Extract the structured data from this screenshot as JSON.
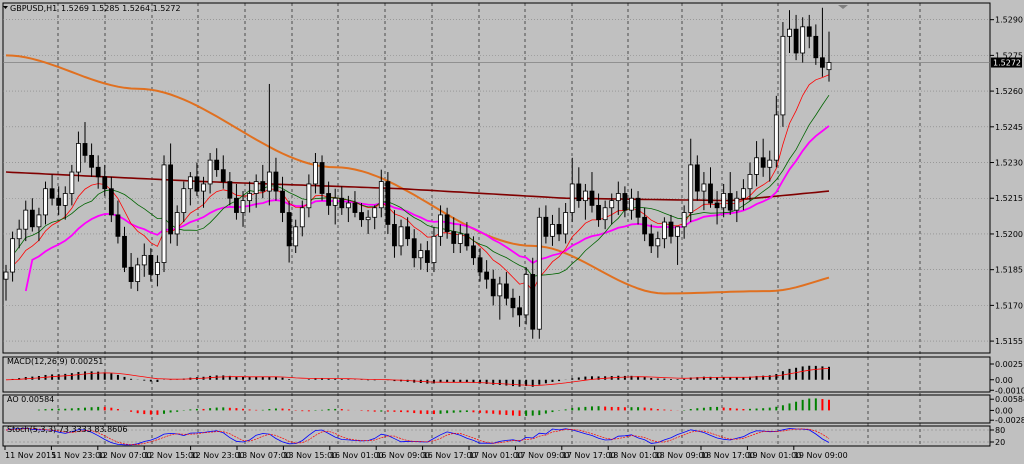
{
  "header": {
    "symbol_title": "GBPUSD,H1",
    "ohlc": "1.5269 1.5285 1.5264 1.5272"
  },
  "price_axis": {
    "ticks": [
      "1.5290",
      "1.5275",
      "1.5260",
      "1.5245",
      "1.5230",
      "1.5215",
      "1.5200",
      "1.5185",
      "1.5170",
      "1.5155"
    ],
    "current_price": "1.5272"
  },
  "time_axis": {
    "ticks": [
      "11 Nov 2015",
      "11 Nov 23:00",
      "12 Nov 07:00",
      "12 Nov 15:00",
      "12 Nov 23:00",
      "13 Nov 07:00",
      "13 Nov 15:00",
      "16 Nov 01:00",
      "16 Nov 09:00",
      "16 Nov 17:00",
      "17 Nov 01:00",
      "17 Nov 09:00",
      "17 Nov 17:00",
      "18 Nov 01:00",
      "18 Nov 09:00",
      "18 Nov 17:00",
      "19 Nov 01:00",
      "19 Nov 09:00"
    ]
  },
  "panels": {
    "macd": {
      "label": "MACD(12,26,9) 0.00251",
      "ticks": [
        "0.00251",
        "0.00",
        "-0.00106"
      ]
    },
    "ao": {
      "label": "AO 0.00584",
      "ticks": [
        "0.00584",
        "0.00",
        "-0.00287"
      ]
    },
    "stoch": {
      "label": "Stoch(5,3,3) 73.3333 83.8606",
      "ticks": [
        "80",
        "20"
      ]
    }
  },
  "colors": {
    "background": "#c0c0c0",
    "bull": "#ffffff",
    "bear": "#000000",
    "sma_long": "#e07020",
    "sma_mid": "#800000",
    "ema_magenta": "#ff00ff",
    "fast_red": "#ff0000",
    "fast_green": "#006400",
    "ao_up": "#008000",
    "ao_down": "#ff0000",
    "stoch_main": "#0000ff",
    "stoch_signal": "#ff0000"
  },
  "chart_data": {
    "type": "candlestick",
    "symbol": "GBPUSD",
    "timeframe": "H1",
    "ylim": [
      1.515,
      1.5297
    ],
    "candles_ohlc": [
      [
        1.5181,
        1.5187,
        1.5172,
        1.5184
      ],
      [
        1.5184,
        1.5201,
        1.518,
        1.5198
      ],
      [
        1.5198,
        1.5206,
        1.5194,
        1.5202
      ],
      [
        1.5202,
        1.5214,
        1.5197,
        1.521
      ],
      [
        1.521,
        1.5215,
        1.5201,
        1.5203
      ],
      [
        1.5203,
        1.5211,
        1.5197,
        1.5208
      ],
      [
        1.5208,
        1.5222,
        1.5204,
        1.5219
      ],
      [
        1.5219,
        1.5225,
        1.5212,
        1.5215
      ],
      [
        1.5215,
        1.522,
        1.5208,
        1.5212
      ],
      [
        1.5212,
        1.522,
        1.5206,
        1.5217
      ],
      [
        1.5217,
        1.5229,
        1.5212,
        1.5226
      ],
      [
        1.5226,
        1.5243,
        1.5222,
        1.5238
      ],
      [
        1.5238,
        1.5247,
        1.523,
        1.5233
      ],
      [
        1.5233,
        1.5238,
        1.5224,
        1.5228
      ],
      [
        1.5228,
        1.5233,
        1.5219,
        1.5224
      ],
      [
        1.5224,
        1.5229,
        1.5216,
        1.5219
      ],
      [
        1.5219,
        1.5224,
        1.5205,
        1.5208
      ],
      [
        1.5208,
        1.5214,
        1.5196,
        1.5199
      ],
      [
        1.5199,
        1.5203,
        1.5184,
        1.5186
      ],
      [
        1.5186,
        1.5192,
        1.5177,
        1.518
      ],
      [
        1.518,
        1.519,
        1.5176,
        1.5187
      ],
      [
        1.5187,
        1.5196,
        1.5182,
        1.5191
      ],
      [
        1.5191,
        1.5194,
        1.518,
        1.5183
      ],
      [
        1.5183,
        1.5191,
        1.5178,
        1.5188
      ],
      [
        1.5188,
        1.5233,
        1.5184,
        1.5229
      ],
      [
        1.5229,
        1.5238,
        1.5196,
        1.52
      ],
      [
        1.52,
        1.5212,
        1.5195,
        1.5209
      ],
      [
        1.5209,
        1.5222,
        1.5205,
        1.5219
      ],
      [
        1.5219,
        1.5226,
        1.5212,
        1.5224
      ],
      [
        1.5224,
        1.523,
        1.5216,
        1.5218
      ],
      [
        1.5218,
        1.5224,
        1.5211,
        1.5221
      ],
      [
        1.5221,
        1.5234,
        1.5217,
        1.5231
      ],
      [
        1.5231,
        1.5236,
        1.5224,
        1.5227
      ],
      [
        1.5227,
        1.5233,
        1.5219,
        1.5222
      ],
      [
        1.5222,
        1.5226,
        1.5212,
        1.5215
      ],
      [
        1.5215,
        1.5221,
        1.5206,
        1.5209
      ],
      [
        1.5209,
        1.5218,
        1.5203,
        1.5214
      ],
      [
        1.5214,
        1.5222,
        1.5209,
        1.5217
      ],
      [
        1.5217,
        1.5225,
        1.5211,
        1.5222
      ],
      [
        1.5222,
        1.5229,
        1.5215,
        1.5218
      ],
      [
        1.5218,
        1.5263,
        1.5212,
        1.5226
      ],
      [
        1.5226,
        1.5232,
        1.5214,
        1.5218
      ],
      [
        1.5218,
        1.5224,
        1.5205,
        1.5209
      ],
      [
        1.5209,
        1.5214,
        1.5188,
        1.5195
      ],
      [
        1.5195,
        1.5206,
        1.5192,
        1.5203
      ],
      [
        1.5203,
        1.5214,
        1.5199,
        1.5211
      ],
      [
        1.5211,
        1.5225,
        1.5207,
        1.5221
      ],
      [
        1.5221,
        1.5234,
        1.5217,
        1.523
      ],
      [
        1.523,
        1.5233,
        1.5214,
        1.5217
      ],
      [
        1.5217,
        1.5222,
        1.5208,
        1.5212
      ],
      [
        1.5212,
        1.5219,
        1.5204,
        1.5215
      ],
      [
        1.5215,
        1.522,
        1.5208,
        1.5211
      ],
      [
        1.5211,
        1.5216,
        1.5205,
        1.5213
      ],
      [
        1.5213,
        1.5218,
        1.5207,
        1.5209
      ],
      [
        1.5209,
        1.5213,
        1.5203,
        1.5206
      ],
      [
        1.5206,
        1.521,
        1.52,
        1.5207
      ],
      [
        1.5207,
        1.5212,
        1.5202,
        1.5211
      ],
      [
        1.5211,
        1.5227,
        1.5207,
        1.5222
      ],
      [
        1.5222,
        1.5226,
        1.52,
        1.5204
      ],
      [
        1.5204,
        1.521,
        1.519,
        1.5195
      ],
      [
        1.5195,
        1.5206,
        1.5191,
        1.5203
      ],
      [
        1.5203,
        1.5207,
        1.5195,
        1.5198
      ],
      [
        1.5198,
        1.5202,
        1.5186,
        1.519
      ],
      [
        1.519,
        1.5196,
        1.5185,
        1.5193
      ],
      [
        1.5193,
        1.5197,
        1.5184,
        1.5188
      ],
      [
        1.5188,
        1.5203,
        1.5184,
        1.5199
      ],
      [
        1.5199,
        1.5212,
        1.5195,
        1.5208
      ],
      [
        1.5208,
        1.5211,
        1.5198,
        1.5201
      ],
      [
        1.5201,
        1.5207,
        1.5192,
        1.5196
      ],
      [
        1.5196,
        1.5204,
        1.5192,
        1.52
      ],
      [
        1.52,
        1.5205,
        1.5193,
        1.5195
      ],
      [
        1.5195,
        1.5199,
        1.5187,
        1.519
      ],
      [
        1.519,
        1.5194,
        1.518,
        1.5184
      ],
      [
        1.5184,
        1.5189,
        1.5177,
        1.5181
      ],
      [
        1.5181,
        1.5185,
        1.517,
        1.5174
      ],
      [
        1.5174,
        1.5182,
        1.5164,
        1.5179
      ],
      [
        1.5179,
        1.5184,
        1.517,
        1.5173
      ],
      [
        1.5173,
        1.5177,
        1.5165,
        1.5169
      ],
      [
        1.5169,
        1.5174,
        1.5161,
        1.5166
      ],
      [
        1.5166,
        1.5186,
        1.5162,
        1.5183
      ],
      [
        1.5183,
        1.519,
        1.5156,
        1.516
      ],
      [
        1.516,
        1.5211,
        1.5156,
        1.5207
      ],
      [
        1.5207,
        1.5212,
        1.5196,
        1.5199
      ],
      [
        1.5199,
        1.5208,
        1.5195,
        1.5204
      ],
      [
        1.5204,
        1.5211,
        1.5197,
        1.52
      ],
      [
        1.52,
        1.5213,
        1.5196,
        1.5209
      ],
      [
        1.5209,
        1.5232,
        1.5205,
        1.5221
      ],
      [
        1.5221,
        1.5228,
        1.5211,
        1.5214
      ],
      [
        1.5214,
        1.5221,
        1.5206,
        1.5218
      ],
      [
        1.5218,
        1.5226,
        1.5209,
        1.5212
      ],
      [
        1.5212,
        1.5217,
        1.5203,
        1.5206
      ],
      [
        1.5206,
        1.5214,
        1.5202,
        1.5211
      ],
      [
        1.5211,
        1.5217,
        1.5204,
        1.5214
      ],
      [
        1.5214,
        1.5222,
        1.5208,
        1.5217
      ],
      [
        1.5217,
        1.522,
        1.5207,
        1.521
      ],
      [
        1.521,
        1.5219,
        1.5206,
        1.5215
      ],
      [
        1.5215,
        1.5218,
        1.5204,
        1.5207
      ],
      [
        1.5207,
        1.5211,
        1.5197,
        1.52
      ],
      [
        1.52,
        1.5204,
        1.5192,
        1.5195
      ],
      [
        1.5195,
        1.5201,
        1.519,
        1.5198
      ],
      [
        1.5198,
        1.5207,
        1.5194,
        1.5205
      ],
      [
        1.5205,
        1.5208,
        1.5196,
        1.5199
      ],
      [
        1.5199,
        1.5203,
        1.5187,
        1.5203
      ],
      [
        1.5203,
        1.5212,
        1.5198,
        1.5209
      ],
      [
        1.5209,
        1.524,
        1.5205,
        1.5229
      ],
      [
        1.5229,
        1.5233,
        1.5214,
        1.5218
      ],
      [
        1.5218,
        1.5226,
        1.521,
        1.5221
      ],
      [
        1.5221,
        1.5228,
        1.5211,
        1.5213
      ],
      [
        1.5213,
        1.5218,
        1.5204,
        1.5211
      ],
      [
        1.5211,
        1.5221,
        1.5207,
        1.5217
      ],
      [
        1.5217,
        1.5226,
        1.5208,
        1.521
      ],
      [
        1.521,
        1.5218,
        1.5205,
        1.5215
      ],
      [
        1.5215,
        1.5223,
        1.521,
        1.5219
      ],
      [
        1.5219,
        1.523,
        1.5214,
        1.5225
      ],
      [
        1.5225,
        1.5239,
        1.522,
        1.5232
      ],
      [
        1.5232,
        1.524,
        1.5224,
        1.5228
      ],
      [
        1.5228,
        1.5235,
        1.5222,
        1.5231
      ],
      [
        1.5231,
        1.5258,
        1.5228,
        1.525
      ],
      [
        1.525,
        1.5289,
        1.5245,
        1.5283
      ],
      [
        1.5283,
        1.5294,
        1.5276,
        1.5286
      ],
      [
        1.5286,
        1.5292,
        1.5273,
        1.5276
      ],
      [
        1.5276,
        1.5291,
        1.5272,
        1.5287
      ],
      [
        1.5287,
        1.5292,
        1.5278,
        1.5283
      ],
      [
        1.5283,
        1.5288,
        1.5271,
        1.5274
      ],
      [
        1.5274,
        1.5295,
        1.5266,
        1.527
      ],
      [
        1.5269,
        1.5285,
        1.5264,
        1.5272
      ]
    ],
    "indicators": [
      "SMA long (orange)",
      "SMA mid (dark red)",
      "EMA (magenta)",
      "fast MA (red)",
      "fast MA (green)"
    ]
  }
}
